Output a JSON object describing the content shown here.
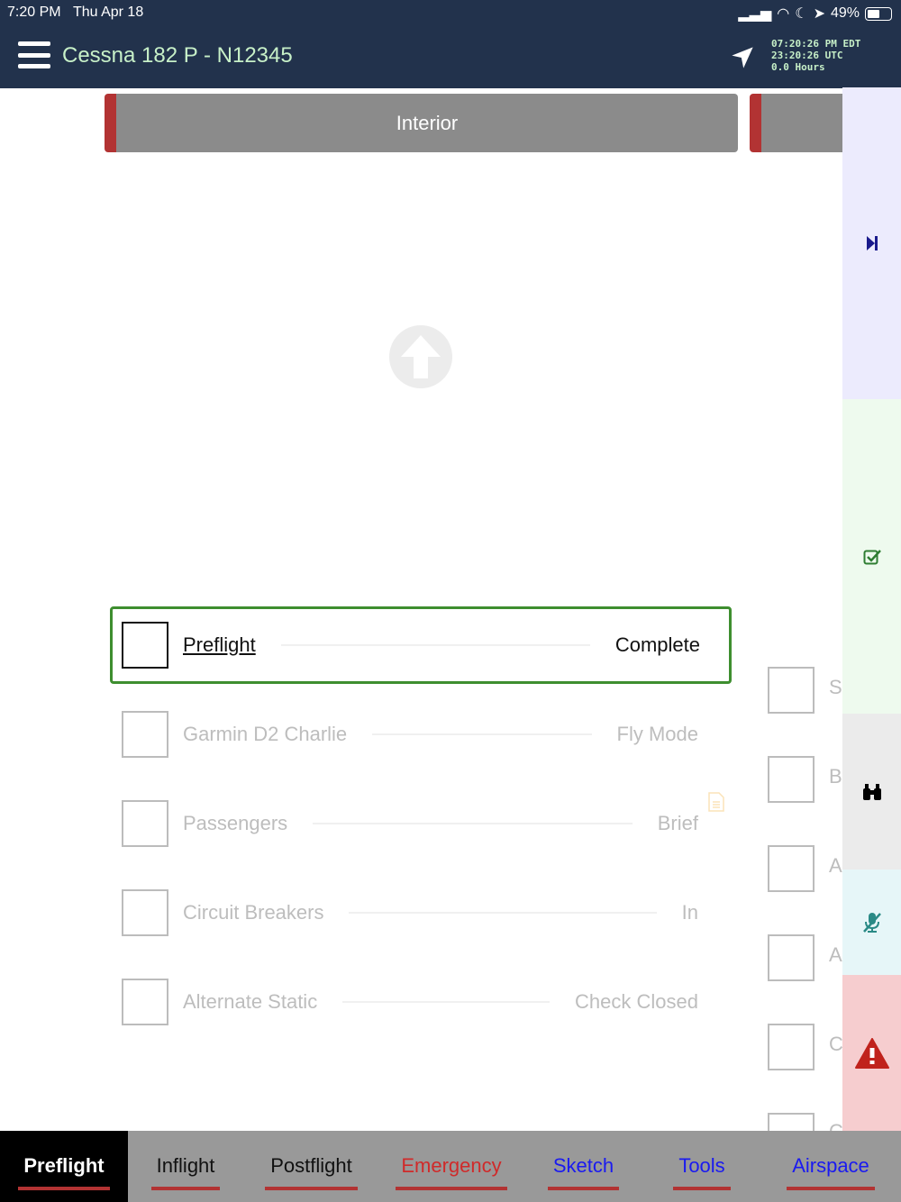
{
  "status": {
    "time": "7:20 PM",
    "date": "Thu Apr 18",
    "battery": "49%",
    "battery_level": 0.49
  },
  "header": {
    "title": "Cessna 182 P - N12345",
    "clock_local": "07:20:26 PM EDT",
    "clock_utc": "23:20:26 UTC",
    "hours": "0.0 Hours"
  },
  "section": {
    "current": "Interior"
  },
  "checklist": [
    {
      "item": "Preflight",
      "value": "Complete",
      "active": true
    },
    {
      "item": "Garmin D2 Charlie",
      "value": "Fly Mode"
    },
    {
      "item": "Passengers",
      "value": "Brief",
      "has_note": true
    },
    {
      "item": "Circuit Breakers",
      "value": "In"
    },
    {
      "item": "Alternate Static",
      "value": "Check Closed"
    }
  ],
  "next_column_initials": [
    "S",
    "B",
    "A",
    "A",
    "C",
    "C"
  ],
  "sidebar": [
    {
      "icon": "skip-forward-icon",
      "color": "#1a1a8c",
      "bg": "#ecebfd"
    },
    {
      "icon": "checkbox-icon",
      "color": "#2e7d32",
      "bg": "#eefaee"
    },
    {
      "icon": "binoculars-icon",
      "color": "#000000",
      "bg": "#ebebeb"
    },
    {
      "icon": "mic-off-icon",
      "color": "#2a8a86",
      "bg": "#e6f6f8"
    },
    {
      "icon": "warning-icon",
      "color": "#c0221c",
      "bg": "#f6cdcf"
    }
  ],
  "tabs": [
    {
      "label": "Preflight",
      "color": "#ffffff"
    },
    {
      "label": "Inflight",
      "color": "#111111"
    },
    {
      "label": "Postflight",
      "color": "#111111"
    },
    {
      "label": "Emergency",
      "color": "#d02a2a"
    },
    {
      "label": "Sketch",
      "color": "#1a1af0"
    },
    {
      "label": "Tools",
      "color": "#1a1af0"
    },
    {
      "label": "Airspace",
      "color": "#1a1af0"
    }
  ]
}
